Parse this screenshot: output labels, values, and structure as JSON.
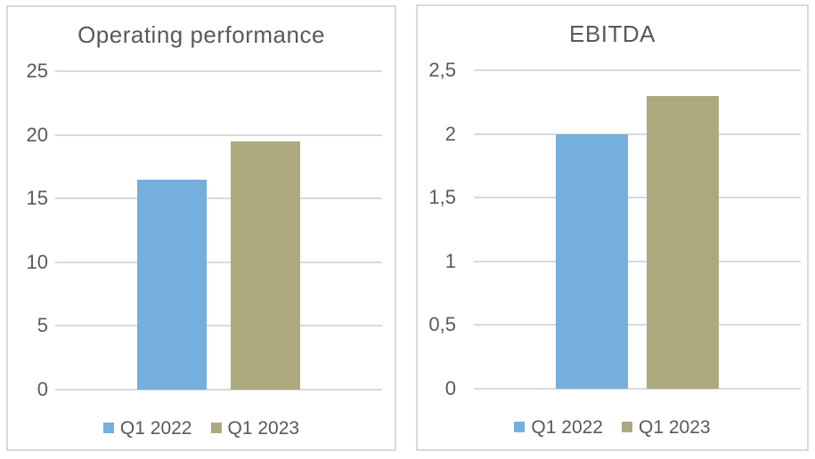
{
  "colors": {
    "series": [
      "#74AFDD",
      "#ACA97E"
    ],
    "gridline": "#D9D9D9",
    "panel_border": "#D9D9D9",
    "text": "#595959",
    "background": "#FFFFFF"
  },
  "chart_data": [
    {
      "type": "bar",
      "title": "Operating performance",
      "categories": [
        ""
      ],
      "series": [
        {
          "name": "Q1 2022",
          "values": [
            16.5
          ]
        },
        {
          "name": "Q1 2023",
          "values": [
            19.5
          ]
        }
      ],
      "ylim": [
        0,
        25
      ],
      "yticks": [
        {
          "value": 25,
          "label": "25"
        },
        {
          "value": 20,
          "label": "20"
        },
        {
          "value": 15,
          "label": "15"
        },
        {
          "value": 10,
          "label": "10"
        },
        {
          "value": 5,
          "label": "5"
        },
        {
          "value": 0,
          "label": "0"
        }
      ],
      "grid": true,
      "legend_position": "bottom",
      "xlabel": "",
      "ylabel": ""
    },
    {
      "type": "bar",
      "title": "EBITDA",
      "categories": [
        ""
      ],
      "series": [
        {
          "name": "Q1 2022",
          "values": [
            2
          ]
        },
        {
          "name": "Q1 2023",
          "values": [
            2.3
          ]
        }
      ],
      "ylim": [
        0,
        2.5
      ],
      "yticks": [
        {
          "value": 2.5,
          "label": "2,5"
        },
        {
          "value": 2,
          "label": "2"
        },
        {
          "value": 1.5,
          "label": "1,5"
        },
        {
          "value": 1,
          "label": "1"
        },
        {
          "value": 0.5,
          "label": "0,5"
        },
        {
          "value": 0,
          "label": "0"
        }
      ],
      "grid": true,
      "legend_position": "bottom",
      "xlabel": "",
      "ylabel": ""
    }
  ]
}
